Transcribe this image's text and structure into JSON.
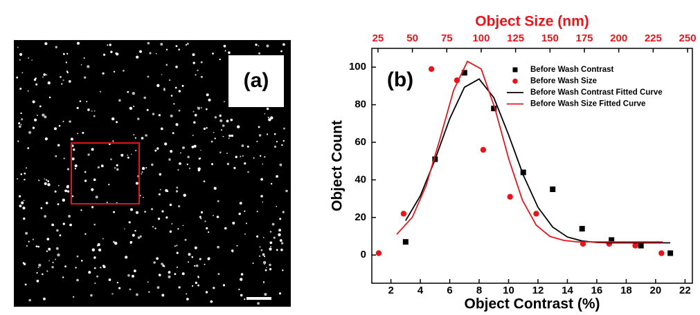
{
  "panel_a": {
    "label": "(a)"
  },
  "chart_data": {
    "type": "scatter",
    "panel_label": "(b)",
    "title": "Object Size (nm)",
    "xlabel": "Object Contrast (%)",
    "ylabel": "Object Count",
    "xlim": [
      0.7,
      22.5
    ],
    "xticks": [
      2,
      4,
      6,
      8,
      10,
      12,
      14,
      16,
      18,
      20,
      22
    ],
    "x2lim": [
      20.5,
      253.5
    ],
    "x2ticks": [
      25,
      50,
      75,
      100,
      125,
      150,
      175,
      200,
      225,
      250
    ],
    "ylim": [
      -15,
      110
    ],
    "yticks": [
      0,
      20,
      40,
      60,
      80,
      100
    ],
    "title_color": "#e8141b",
    "series": [
      {
        "name": "Before Wash Contrast",
        "color": "#000000",
        "marker": "square",
        "axis": "x",
        "x": [
          3,
          5,
          7,
          9,
          11,
          13,
          15,
          17,
          19,
          21
        ],
        "values": [
          7,
          51,
          97,
          78,
          44,
          35,
          14,
          8,
          5,
          1
        ]
      },
      {
        "name": "Before Wash Size",
        "color": "#e8141b",
        "marker": "circle",
        "axis": "x2",
        "x": [
          25.5,
          43.6,
          63.8,
          82.4,
          101.5,
          121,
          140,
          174,
          193,
          212,
          231
        ],
        "values": [
          1,
          22,
          99,
          93,
          56,
          31,
          22,
          6,
          6,
          5,
          1
        ]
      },
      {
        "name": "Before Wash Contrast Fitted Curve",
        "color": "#000000",
        "marker": "line",
        "axis": "x",
        "x": [
          3,
          4,
          5,
          6,
          7,
          8,
          9,
          10,
          11,
          12,
          13,
          14,
          15,
          16,
          17,
          18,
          19,
          20,
          21
        ],
        "values": [
          18.3,
          31.5,
          50.8,
          72.6,
          89.3,
          93.7,
          83.7,
          64.0,
          42.5,
          25.4,
          14.9,
          9.6,
          7.5,
          6.7,
          6.5,
          6.5,
          6.5,
          6.5,
          6.5
        ]
      },
      {
        "name": "Before Wash Size Fitted Curve",
        "color": "#e8141b",
        "marker": "line",
        "axis": "x2",
        "x": [
          38.6,
          50,
          60,
          70,
          80,
          90,
          100,
          110,
          120,
          130,
          140,
          150,
          160,
          170,
          180,
          190,
          200,
          210,
          220,
          232
        ],
        "values": [
          11,
          20.2,
          37.0,
          61.8,
          87.8,
          103.1,
          99.0,
          78.0,
          51.2,
          29.1,
          15.9,
          9.9,
          7.8,
          7,
          7,
          7,
          7,
          7,
          7,
          7
        ]
      }
    ]
  }
}
